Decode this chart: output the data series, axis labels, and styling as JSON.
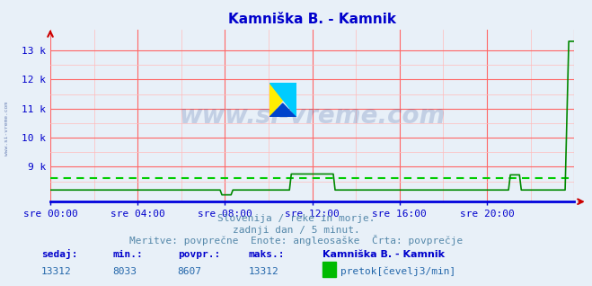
{
  "title": "Kamniška B. - Kamnik",
  "title_color": "#0000cc",
  "bg_color": "#e8f0f8",
  "plot_bg_color": "#ffffff",
  "grid_color_v": "#ff6666",
  "grid_color_h": "#ff9999",
  "line_color": "#008800",
  "avg_line_color": "#00cc00",
  "x_axis_color": "#0000dd",
  "tick_color": "#0000cc",
  "watermark_color": "#1a3a8a",
  "ylim_min": 7800,
  "ylim_max": 13700,
  "yticks": [
    9000,
    10000,
    11000,
    12000,
    13000
  ],
  "ytick_labels": [
    "9 k",
    "10 k",
    "11 k",
    "12 k",
    "13 k"
  ],
  "xtick_positions": [
    0,
    4,
    8,
    12,
    16,
    20
  ],
  "xtick_labels": [
    "sre 00:00",
    "sre 04:00",
    "sre 08:00",
    "sre 12:00",
    "sre 16:00",
    "sre 20:00"
  ],
  "num_points": 288,
  "avg_value": 8607,
  "min_value": 8033,
  "max_value": 13312,
  "current_value": 13312,
  "subtitle1": "Slovenija / reke in morje.",
  "subtitle2": "zadnji dan / 5 minut.",
  "subtitle3": "Meritve: povprečne  Enote: angleosaške  Črta: povprečje",
  "subtitle_color": "#5588aa",
  "stats_label_color": "#0000cc",
  "stats_value_color": "#2266aa",
  "legend_title": "Kamniška B. - Kamnik",
  "legend_label": "pretok[čevelj3/min]",
  "legend_color": "#00bb00"
}
